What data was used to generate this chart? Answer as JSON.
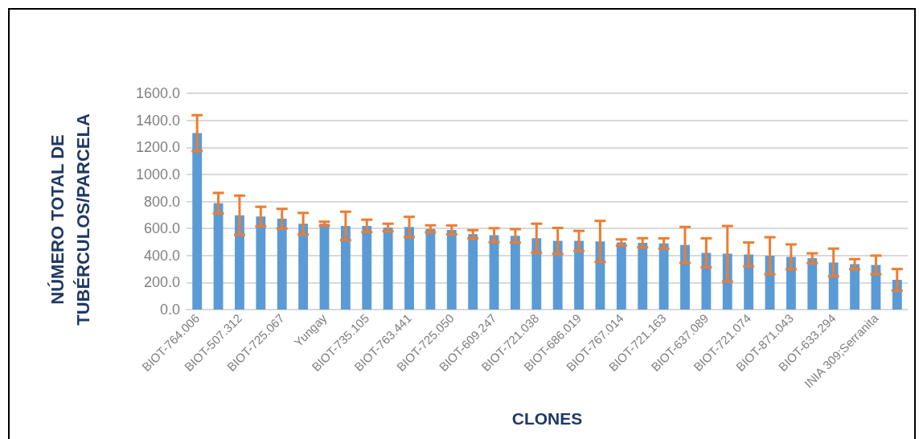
{
  "chart_data": {
    "type": "bar",
    "xlabel": "CLONES",
    "ylabel": "NÚMERO TOTAL DE\nTUBÉRCULOS/PARCELA",
    "categories": [
      "BIOT-764.006",
      null,
      "BIOT-507.312",
      null,
      "BIOT-725.067",
      null,
      "Yungay",
      null,
      "BIOT-735.105",
      null,
      "BIOT-763.441",
      null,
      "BIOT-725.050",
      null,
      "BIOT-609.247",
      null,
      "BIOT-721.038",
      null,
      "BIOT-686.019",
      null,
      "BIOT-767.014",
      null,
      "BIOT-721.163",
      null,
      "BIOT-637.089",
      null,
      "BIOT-721.074",
      null,
      "BIOT-871.043",
      null,
      "BIOT-633.294",
      null,
      "INIA 309;Serranita",
      null
    ],
    "values": [
      1305,
      787,
      698,
      688,
      672,
      635,
      635,
      619,
      619,
      607,
      611,
      597,
      589,
      557,
      550,
      545,
      528,
      508,
      508,
      504,
      496,
      494,
      489,
      478,
      420,
      413,
      408,
      398,
      390,
      380,
      348,
      336,
      330,
      220
    ],
    "errors": [
      133,
      76,
      145,
      72,
      73,
      80,
      15,
      105,
      46,
      28,
      75,
      26,
      33,
      30,
      52,
      50,
      107,
      96,
      74,
      152,
      23,
      34,
      38,
      133,
      107,
      205,
      88,
      137,
      92,
      36,
      103,
      37,
      69,
      80
    ],
    "color": "#5b9bd5",
    "ylim": [
      0,
      1600
    ],
    "yticks": [
      {
        "value": 0,
        "label": "0.0"
      },
      {
        "value": 200,
        "label": "200.0"
      },
      {
        "value": 400,
        "label": "400.0"
      },
      {
        "value": 600,
        "label": "600.0"
      },
      {
        "value": 800,
        "label": "800.0"
      },
      {
        "value": 1000,
        "label": "1000.0"
      },
      {
        "value": 1200,
        "label": "1200.0"
      },
      {
        "value": 1400,
        "label": "1400.0"
      },
      {
        "value": 1600,
        "label": "1600.0"
      }
    ],
    "grid": "y"
  }
}
